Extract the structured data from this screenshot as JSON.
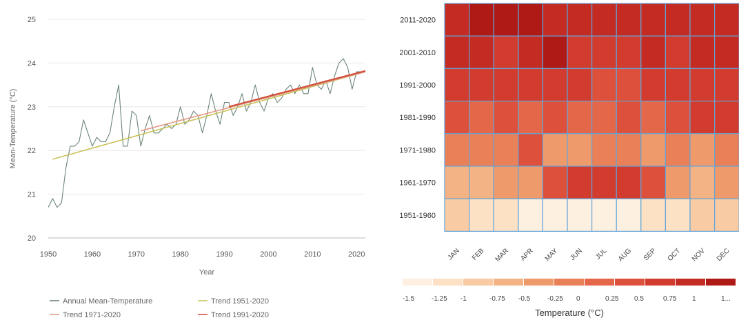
{
  "chart_data": [
    {
      "type": "line",
      "xlabel": "Year",
      "ylabel": "Mean-Temperature (°C)",
      "xlim": [
        1950,
        2022
      ],
      "ylim": [
        20,
        25
      ],
      "xticks": [
        "1950",
        "1960",
        "1970",
        "1980",
        "1990",
        "2000",
        "2010",
        "2020"
      ],
      "yticks": [
        "20",
        "21",
        "22",
        "23",
        "24",
        "25"
      ],
      "grid": "horizontal",
      "legend_position": "bottom",
      "series": [
        {
          "name": "Annual Mean-Temperature",
          "color": "#6b8578",
          "x": [
            1950,
            1951,
            1952,
            1953,
            1954,
            1955,
            1956,
            1957,
            1958,
            1959,
            1960,
            1961,
            1962,
            1963,
            1964,
            1965,
            1966,
            1967,
            1968,
            1969,
            1970,
            1971,
            1972,
            1973,
            1974,
            1975,
            1976,
            1977,
            1978,
            1979,
            1980,
            1981,
            1982,
            1983,
            1984,
            1985,
            1986,
            1987,
            1988,
            1989,
            1990,
            1991,
            1992,
            1993,
            1994,
            1995,
            1996,
            1997,
            1998,
            1999,
            2000,
            2001,
            2002,
            2003,
            2004,
            2005,
            2006,
            2007,
            2008,
            2009,
            2010,
            2011,
            2012,
            2013,
            2014,
            2015,
            2016,
            2017,
            2018,
            2019,
            2020,
            2021,
            2022
          ],
          "y": [
            20.7,
            20.9,
            20.7,
            20.8,
            21.6,
            22.1,
            22.1,
            22.2,
            22.7,
            22.4,
            22.1,
            22.3,
            22.2,
            22.2,
            22.4,
            23.0,
            23.5,
            22.1,
            22.1,
            22.9,
            22.8,
            22.1,
            22.5,
            22.8,
            22.4,
            22.4,
            22.5,
            22.6,
            22.5,
            22.6,
            23.0,
            22.6,
            22.7,
            22.9,
            22.8,
            22.4,
            22.8,
            23.3,
            22.9,
            22.6,
            23.1,
            23.1,
            22.8,
            23.0,
            23.3,
            22.9,
            23.1,
            23.5,
            23.1,
            22.9,
            23.2,
            23.3,
            23.1,
            23.2,
            23.4,
            23.5,
            23.3,
            23.5,
            23.3,
            23.3,
            23.9,
            23.5,
            23.4,
            23.6,
            23.3,
            23.7,
            24.0,
            24.1,
            23.9,
            23.4,
            23.8,
            23.8,
            23.8
          ]
        },
        {
          "name": "Trend 1951-2020",
          "color": "#c9c25a",
          "x": [
            1951,
            2022
          ],
          "y": [
            21.8,
            23.8
          ]
        },
        {
          "name": "Trend 1971-2020",
          "color": "#e39a86",
          "x": [
            1971,
            2022
          ],
          "y": [
            22.45,
            23.8
          ]
        },
        {
          "name": "Trend 1991-2020",
          "color": "#d2503c",
          "x": [
            1991,
            2022
          ],
          "y": [
            23.0,
            23.82
          ]
        }
      ]
    },
    {
      "type": "heatmap",
      "rows": [
        "2011-2020",
        "2001-2010",
        "1991-2000",
        "1981-1990",
        "1971-1980",
        "1961-1970",
        "1951-1960"
      ],
      "columns": [
        "JAN",
        "FEB",
        "MAR",
        "APR",
        "MAY",
        "JUN",
        "JUL",
        "AUG",
        "SEP",
        "OCT",
        "NOV",
        "DEC"
      ],
      "values": [
        [
          0.85,
          1.0,
          1.05,
          1.15,
          0.85,
          0.88,
          0.85,
          0.82,
          0.82,
          0.9,
          0.82,
          0.85
        ],
        [
          0.75,
          0.78,
          0.72,
          0.75,
          1.05,
          0.72,
          0.72,
          0.72,
          0.75,
          0.72,
          0.75,
          0.75
        ],
        [
          0.62,
          0.65,
          0.58,
          0.62,
          0.55,
          0.52,
          0.3,
          0.48,
          0.52,
          0.5,
          0.52,
          0.55
        ],
        [
          0.3,
          0.18,
          0.25,
          0.0,
          0.25,
          0.18,
          0.22,
          0.32,
          0.18,
          0.28,
          0.55,
          0.52
        ],
        [
          -0.2,
          -0.18,
          -0.05,
          0.3,
          -0.3,
          -0.3,
          -0.15,
          -0.25,
          -0.3,
          -0.2,
          -0.3,
          -0.1
        ],
        [
          -0.55,
          -0.62,
          -0.5,
          -0.28,
          0.3,
          0.55,
          0.7,
          0.62,
          0.4,
          -0.45,
          -0.55,
          -0.3
        ],
        [
          -0.95,
          -1.05,
          -1.25,
          -1.5,
          -1.45,
          -1.3,
          -1.4,
          -1.3,
          -1.15,
          -1.25,
          -0.95,
          -0.98
        ]
      ],
      "colorbar": {
        "title": "Temperature (°C)",
        "range": [
          -1.5,
          1.25
        ],
        "ticks": [
          "-1.5",
          "-1.25",
          "-1",
          "-0.75",
          "-0.5",
          "-0.25",
          "0",
          "0.25",
          "0.5",
          "0.75",
          "1",
          "1..."
        ],
        "colors": [
          "#fdf0e0",
          "#fce1c4",
          "#f8cba4",
          "#f4b384",
          "#ef9a6b",
          "#ea8058",
          "#e4674a",
          "#dc503c",
          "#d23c2f",
          "#c42b23",
          "#b01a16"
        ]
      }
    }
  ]
}
